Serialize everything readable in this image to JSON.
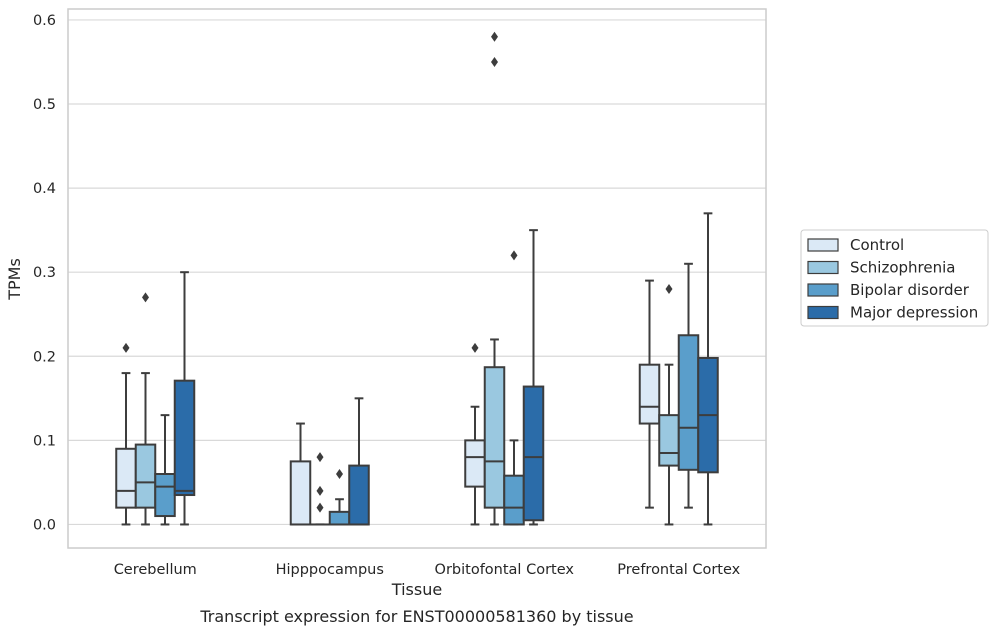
{
  "caption": "Transcript expression for ENST00000581360 by tissue",
  "chart_data": {
    "type": "boxplot",
    "xlabel": "Tissue",
    "ylabel": "TPMs",
    "ylim": [
      -0.028,
      0.613
    ],
    "yticks": [
      "0.0",
      "0.1",
      "0.2",
      "0.3",
      "0.4",
      "0.5",
      "0.6"
    ],
    "grid": "horizontal",
    "legend_position": "right",
    "categories": [
      "Cerebellum",
      "Hipppocampus",
      "Orbitofontal Cortex",
      "Prefrontal Cortex"
    ],
    "series": [
      {
        "name": "Control",
        "color": "#dbe9f6",
        "boxes": [
          {
            "min": 0.0,
            "q1": 0.02,
            "median": 0.04,
            "q3": 0.09,
            "max": 0.18,
            "outliers": [
              0.21
            ]
          },
          {
            "min": 0.0,
            "q1": 0.0,
            "median": 0.0,
            "q3": 0.075,
            "max": 0.12,
            "outliers": []
          },
          {
            "min": 0.0,
            "q1": 0.045,
            "median": 0.08,
            "q3": 0.1,
            "max": 0.14,
            "outliers": [
              0.21
            ]
          },
          {
            "min": 0.02,
            "q1": 0.12,
            "median": 0.14,
            "q3": 0.19,
            "max": 0.29,
            "outliers": []
          }
        ]
      },
      {
        "name": "Schizophrenia",
        "color": "#9ac8e0",
        "boxes": [
          {
            "min": 0.0,
            "q1": 0.02,
            "median": 0.05,
            "q3": 0.095,
            "max": 0.18,
            "outliers": [
              0.27
            ]
          },
          {
            "min": 0.0,
            "q1": 0.0,
            "median": 0.0,
            "q3": 0.0,
            "max": 0.0,
            "outliers": [
              0.02,
              0.04,
              0.08
            ]
          },
          {
            "min": 0.0,
            "q1": 0.02,
            "median": 0.075,
            "q3": 0.187,
            "max": 0.22,
            "outliers": [
              0.55,
              0.58
            ]
          },
          {
            "min": 0.0,
            "q1": 0.07,
            "median": 0.085,
            "q3": 0.13,
            "max": 0.19,
            "outliers": [
              0.28
            ]
          }
        ]
      },
      {
        "name": "Bipolar disorder",
        "color": "#5a9ecb",
        "boxes": [
          {
            "min": 0.0,
            "q1": 0.01,
            "median": 0.045,
            "q3": 0.06,
            "max": 0.13,
            "outliers": []
          },
          {
            "min": 0.0,
            "q1": 0.0,
            "median": 0.0,
            "q3": 0.015,
            "max": 0.03,
            "outliers": [
              0.06
            ]
          },
          {
            "min": 0.0,
            "q1": 0.0,
            "median": 0.02,
            "q3": 0.058,
            "max": 0.1,
            "outliers": [
              0.32
            ]
          },
          {
            "min": 0.02,
            "q1": 0.065,
            "median": 0.115,
            "q3": 0.225,
            "max": 0.31,
            "outliers": []
          }
        ]
      },
      {
        "name": "Major depression",
        "color": "#2b6ca9",
        "boxes": [
          {
            "min": 0.0,
            "q1": 0.035,
            "median": 0.04,
            "q3": 0.171,
            "max": 0.3,
            "outliers": []
          },
          {
            "min": 0.0,
            "q1": 0.0,
            "median": 0.0,
            "q3": 0.07,
            "max": 0.15,
            "outliers": []
          },
          {
            "min": 0.0,
            "q1": 0.005,
            "median": 0.08,
            "q3": 0.164,
            "max": 0.35,
            "outliers": []
          },
          {
            "min": 0.0,
            "q1": 0.062,
            "median": 0.13,
            "q3": 0.198,
            "max": 0.37,
            "outliers": []
          }
        ]
      }
    ]
  }
}
